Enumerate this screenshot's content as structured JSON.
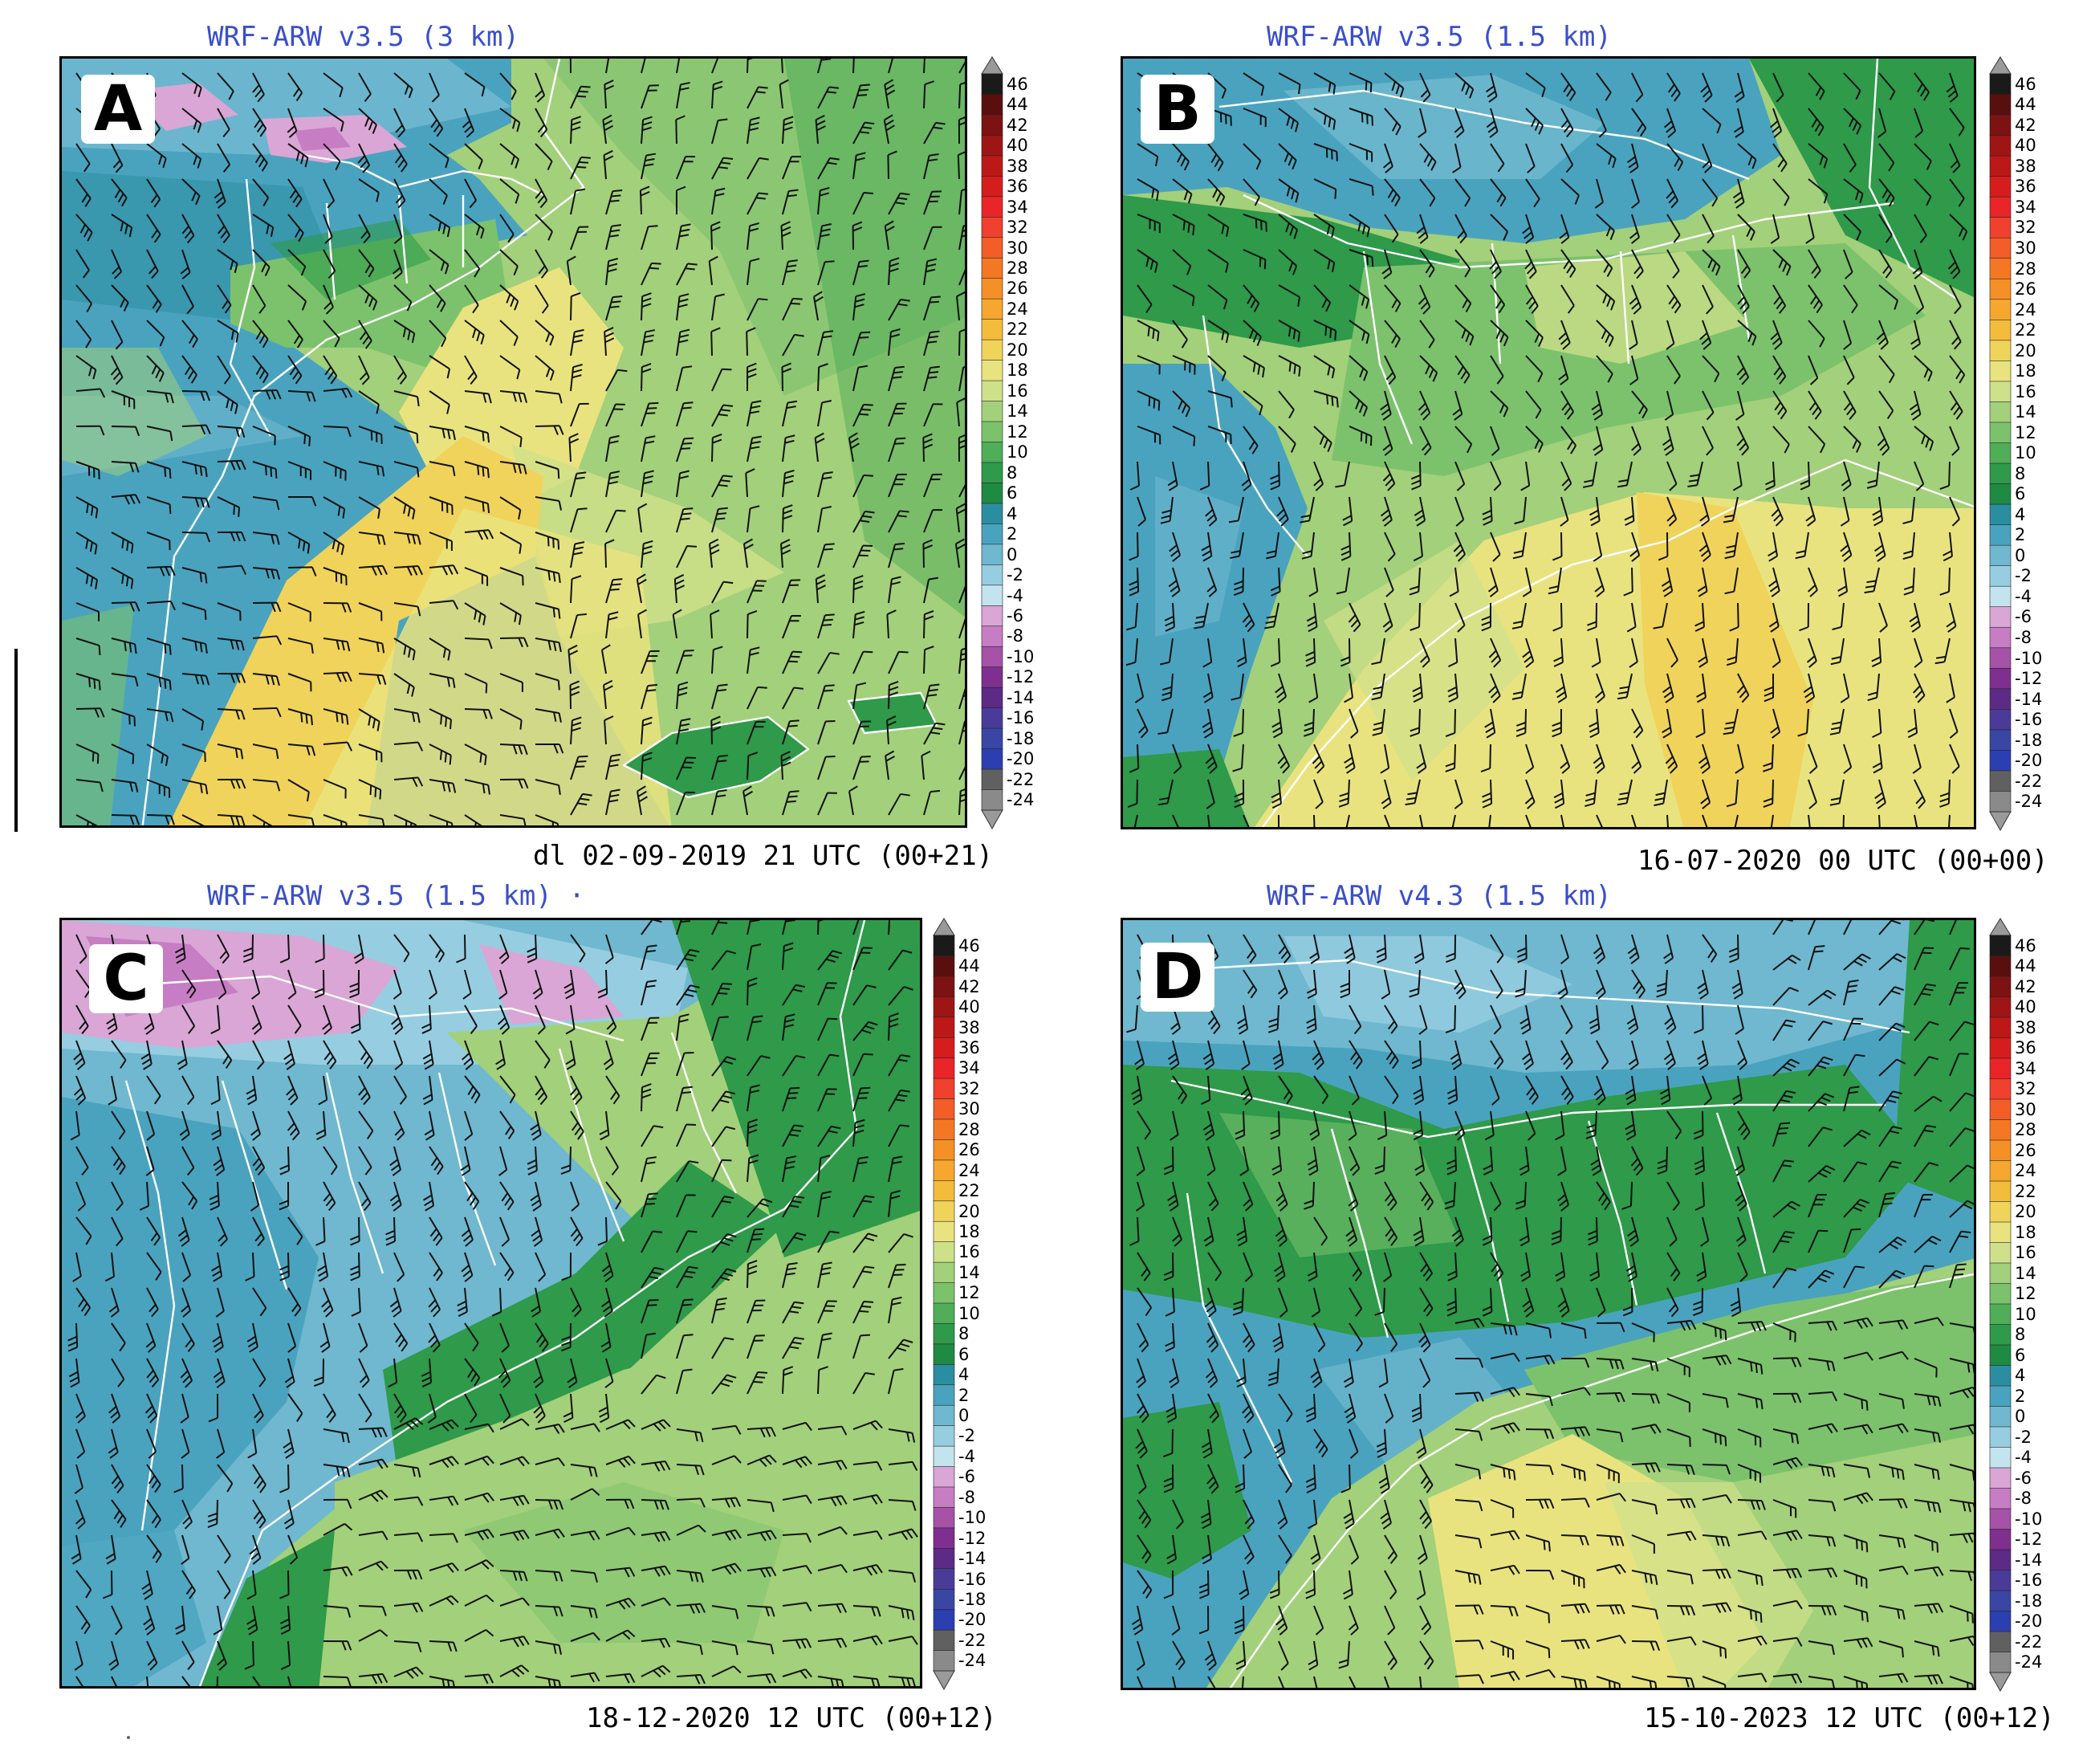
{
  "colorbar": {
    "ticks": [
      "46",
      "44",
      "42",
      "40",
      "38",
      "36",
      "34",
      "32",
      "30",
      "28",
      "26",
      "24",
      "22",
      "20",
      "18",
      "16",
      "14",
      "12",
      "10",
      "8",
      "6",
      "4",
      "2",
      "0",
      "-2",
      "-4",
      "-6",
      "-8",
      "-10",
      "-12",
      "-14",
      "-16",
      "-18",
      "-20",
      "-22",
      "-24"
    ],
    "colors": [
      "#1a1a1a",
      "#5a0f0f",
      "#7d1212",
      "#9e1515",
      "#bd1818",
      "#d61d1d",
      "#e9252a",
      "#f0402e",
      "#f25d28",
      "#f47824",
      "#f59027",
      "#f6a72f",
      "#f4bc3c",
      "#f0d35a",
      "#e9e37f",
      "#cfe08a",
      "#a3d07a",
      "#7cc26c",
      "#4fae57",
      "#2e9a4a",
      "#1f8a42",
      "#2b8ea0",
      "#4aa3be",
      "#6fb8cf",
      "#97cde0",
      "#c3e4ee",
      "#d9a6d6",
      "#c77dc4",
      "#a552a7",
      "#7f2f8f",
      "#5d2a86",
      "#4a3b98",
      "#3a46a4",
      "#2b3fb0",
      "#606060",
      "#8a8a8a"
    ]
  },
  "panels": [
    {
      "id": "A",
      "letter": "A",
      "title": "WRF-ARW v3.5 (3 km)",
      "caption": "dl 02-09-2019 21 UTC (00+21)",
      "icons": [
        "wind-barb-icon"
      ]
    },
    {
      "id": "B",
      "letter": "B",
      "title": "WRF-ARW v3.5 (1.5 km)",
      "caption": "16-07-2020 00 UTC (00+00)",
      "icons": [
        "wind-barb-icon"
      ]
    },
    {
      "id": "C",
      "letter": "C",
      "title": "WRF-ARW v3.5 (1.5 km) ·",
      "caption": "18-12-2020 12 UTC (00+12)",
      "icons": [
        "wind-barb-icon"
      ]
    },
    {
      "id": "D",
      "letter": "D",
      "title": "WRF-ARW v4.3 (1.5 km)",
      "caption": "15-10-2023 12 UTC (00+12)",
      "icons": [
        "wind-barb-icon"
      ]
    }
  ]
}
